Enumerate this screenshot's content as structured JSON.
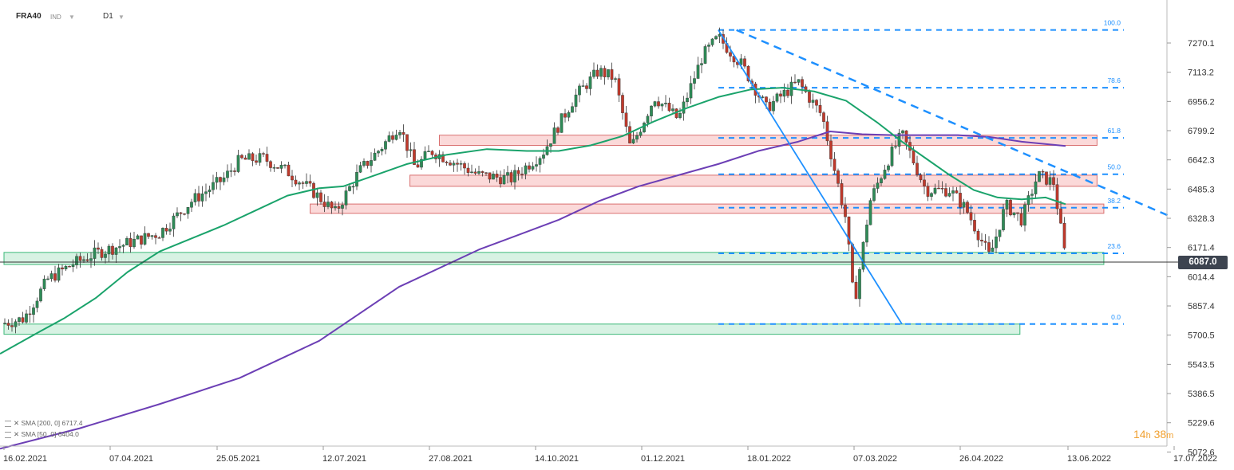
{
  "header": {
    "symbol": "FRA40",
    "instrument_type": "IND",
    "timeframe": "D1"
  },
  "current_price": "6087.0",
  "timer": {
    "hours": "14",
    "h": "h",
    "minutes": "38",
    "m": "m"
  },
  "legend": [
    {
      "label": "SMA [200, 0] 6717.4",
      "color": "#6c3fb5"
    },
    {
      "label": "SMA [50, 0] 6404.0",
      "color": "#1aa36b"
    }
  ],
  "colors": {
    "up": "#2e8b57",
    "down": "#c0392b",
    "sma50": "#1aa36b",
    "sma200": "#6c3fb5",
    "fib": "#1e90ff",
    "resistance": "#e88a8a",
    "support": "#3cb878"
  },
  "chart_data": {
    "type": "candlestick",
    "title": "",
    "y_ticks": [
      "7270.1",
      "7113.2",
      "6956.2",
      "6799.2",
      "6642.3",
      "6485.3",
      "6328.3",
      "6171.4",
      "6014.4",
      "5857.4",
      "5700.5",
      "5543.5",
      "5386.5",
      "5229.6",
      "5072.6"
    ],
    "x_ticks": [
      "16.02.2021",
      "07.04.2021",
      "25.05.2021",
      "12.07.2021",
      "27.08.2021",
      "14.10.2021",
      "01.12.2021",
      "18.01.2022",
      "07.03.2022",
      "26.04.2022",
      "13.06.2022",
      "17.07.2022"
    ],
    "ylim": [
      5050,
      7420
    ],
    "fibonacci": [
      {
        "label": "100.0",
        "value": 7340
      },
      {
        "label": "78.6",
        "value": 7030
      },
      {
        "label": "61.8",
        "value": 6760
      },
      {
        "label": "50.0",
        "value": 6565
      },
      {
        "label": "38.2",
        "value": 6385
      },
      {
        "label": "23.6",
        "value": 6140
      },
      {
        "label": "0.0",
        "value": 5760
      }
    ],
    "resistance_zones": [
      {
        "from": "27.08.2021",
        "to": "13.06.2022",
        "low": 6720,
        "high": 6775
      },
      {
        "from": "14.08.2021",
        "to": "13.06.2022",
        "low": 6500,
        "high": 6560
      },
      {
        "from": "01.07.2021",
        "to": "16.06.2022",
        "low": 6355,
        "high": 6405
      }
    ],
    "support_zones": [
      {
        "from": "16.02.2021",
        "to": "16.06.2022",
        "low": 6080,
        "high": 6145
      },
      {
        "from": "16.02.2021",
        "to": "10.05.2022",
        "low": 5705,
        "high": 5760
      }
    ],
    "trendline": {
      "from": [
        "05.01.2022",
        7340
      ],
      "to": [
        "15.07.2022",
        6340
      ]
    },
    "sma50": [
      [
        0,
        5600
      ],
      [
        25,
        5660
      ],
      [
        50,
        5720
      ],
      [
        80,
        5790
      ],
      [
        120,
        5900
      ],
      [
        160,
        6040
      ],
      [
        200,
        6150
      ],
      [
        240,
        6220
      ],
      [
        280,
        6290
      ],
      [
        320,
        6370
      ],
      [
        360,
        6450
      ],
      [
        400,
        6490
      ],
      [
        430,
        6500
      ],
      [
        470,
        6560
      ],
      [
        510,
        6620
      ],
      [
        560,
        6670
      ],
      [
        610,
        6700
      ],
      [
        660,
        6690
      ],
      [
        700,
        6690
      ],
      [
        740,
        6720
      ],
      [
        780,
        6770
      ],
      [
        820,
        6850
      ],
      [
        860,
        6920
      ],
      [
        900,
        6980
      ],
      [
        940,
        7020
      ],
      [
        980,
        7030
      ],
      [
        1020,
        7010
      ],
      [
        1060,
        6960
      ],
      [
        1100,
        6840
      ],
      [
        1130,
        6740
      ],
      [
        1160,
        6650
      ],
      [
        1190,
        6560
      ],
      [
        1220,
        6480
      ],
      [
        1250,
        6440
      ],
      [
        1280,
        6430
      ],
      [
        1310,
        6440
      ],
      [
        1335,
        6404
      ]
    ],
    "sma200": [
      [
        0,
        5090
      ],
      [
        100,
        5200
      ],
      [
        200,
        5330
      ],
      [
        300,
        5470
      ],
      [
        400,
        5670
      ],
      [
        500,
        5960
      ],
      [
        600,
        6160
      ],
      [
        700,
        6320
      ],
      [
        750,
        6420
      ],
      [
        800,
        6500
      ],
      [
        850,
        6560
      ],
      [
        900,
        6620
      ],
      [
        950,
        6690
      ],
      [
        1000,
        6740
      ],
      [
        1040,
        6795
      ],
      [
        1080,
        6780
      ],
      [
        1120,
        6775
      ],
      [
        1160,
        6775
      ],
      [
        1200,
        6775
      ],
      [
        1240,
        6765
      ],
      [
        1280,
        6740
      ],
      [
        1335,
        6717
      ]
    ]
  }
}
